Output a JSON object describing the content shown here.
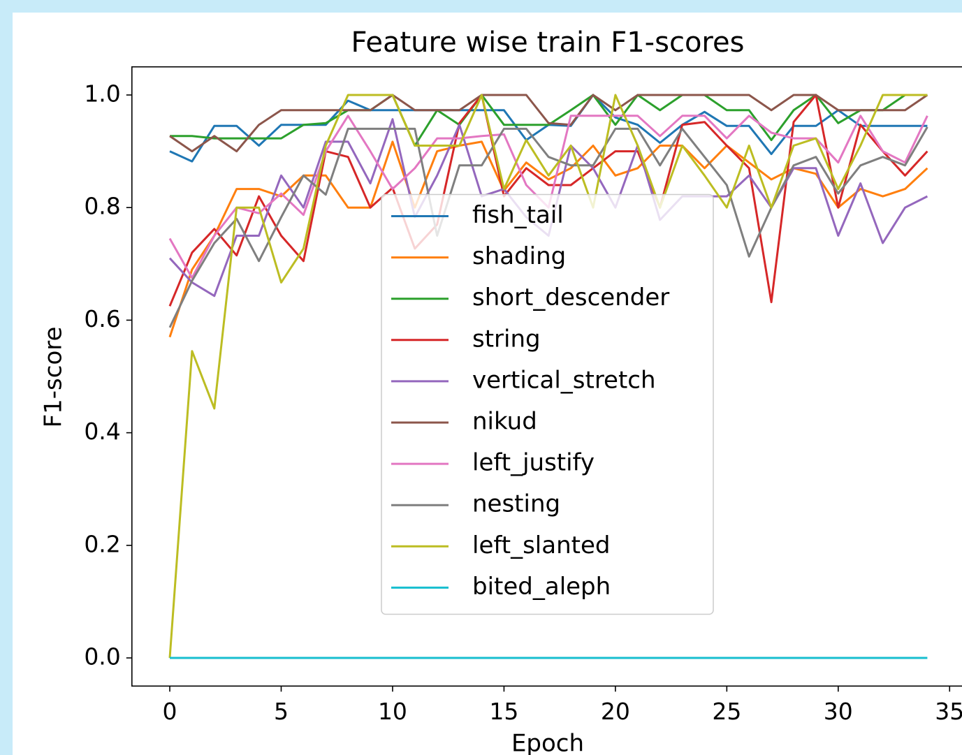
{
  "chart_data": {
    "type": "line",
    "title": "Feature wise train F1-scores",
    "x_label": "Epoch",
    "y_label": "F1-score",
    "x": [
      0,
      1,
      2,
      3,
      4,
      5,
      6,
      7,
      8,
      9,
      10,
      11,
      12,
      13,
      14,
      15,
      16,
      17,
      18,
      19,
      20,
      21,
      22,
      23,
      24,
      25,
      26,
      27,
      28,
      29,
      30,
      31,
      32,
      33,
      34
    ],
    "xlim": [
      -1.7,
      35.7
    ],
    "ylim": [
      -0.05,
      1.05
    ],
    "xticks": [
      0,
      5,
      10,
      15,
      20,
      25,
      30,
      35
    ],
    "yticks": [
      {
        "value": 0,
        "label": "0.0"
      },
      0.2,
      0.4,
      0.6,
      0.8,
      {
        "value": 1,
        "label": "1.0"
      }
    ],
    "legend": "center",
    "series": [
      {
        "name": "fish_tail",
        "color": "#1f77b4",
        "values": [
          0.9,
          0.882,
          0.945,
          0.945,
          0.91,
          0.947,
          0.947,
          0.947,
          0.99,
          0.973,
          0.973,
          0.973,
          0.973,
          0.973,
          0.973,
          0.973,
          0.92,
          0.947,
          0.945,
          1.0,
          0.96,
          0.947,
          0.915,
          0.947,
          0.97,
          0.945,
          0.945,
          0.895,
          0.945,
          0.945,
          0.973,
          0.945,
          0.945,
          0.945,
          0.945
        ]
      },
      {
        "name": "shading",
        "color": "#ff7f0e",
        "values": [
          0.57,
          0.69,
          0.75,
          0.833,
          0.833,
          0.82,
          0.857,
          0.857,
          0.8,
          0.8,
          0.917,
          0.8,
          0.9,
          0.91,
          0.917,
          0.83,
          0.88,
          0.85,
          0.87,
          0.91,
          0.857,
          0.87,
          0.91,
          0.91,
          0.87,
          0.91,
          0.88,
          0.85,
          0.87,
          0.86,
          0.8,
          0.833,
          0.82,
          0.833,
          0.87
        ]
      },
      {
        "name": "short_descender",
        "color": "#2ca02c",
        "values": [
          0.927,
          0.927,
          0.923,
          0.923,
          0.923,
          0.923,
          0.947,
          0.95,
          0.973,
          0.973,
          1.0,
          0.91,
          0.973,
          0.947,
          1.0,
          0.947,
          0.947,
          0.947,
          0.973,
          1.0,
          0.947,
          1.0,
          0.973,
          1.0,
          1.0,
          0.973,
          0.973,
          0.92,
          0.973,
          1.0,
          0.95,
          0.973,
          0.973,
          1.0,
          1.0
        ]
      },
      {
        "name": "string",
        "color": "#d62728",
        "values": [
          0.625,
          0.72,
          0.762,
          0.715,
          0.82,
          0.75,
          0.705,
          0.9,
          0.89,
          0.8,
          0.835,
          0.727,
          0.77,
          0.95,
          1.0,
          0.82,
          0.87,
          0.84,
          0.84,
          0.87,
          0.9,
          0.9,
          0.8,
          0.947,
          0.952,
          0.91,
          0.87,
          0.632,
          0.952,
          1.0,
          0.8,
          0.947,
          0.9,
          0.857,
          0.9
        ]
      },
      {
        "name": "vertical_stretch",
        "color": "#9467bd",
        "values": [
          0.71,
          0.667,
          0.643,
          0.75,
          0.75,
          0.857,
          0.8,
          0.917,
          0.917,
          0.843,
          0.957,
          0.783,
          0.857,
          0.947,
          0.82,
          0.833,
          0.783,
          0.75,
          0.91,
          0.87,
          0.8,
          0.91,
          0.778,
          0.82,
          0.82,
          0.82,
          0.857,
          0.8,
          0.87,
          0.87,
          0.75,
          0.843,
          0.737,
          0.8,
          0.82
        ]
      },
      {
        "name": "nikud",
        "color": "#8c564b",
        "values": [
          0.927,
          0.9,
          0.927,
          0.9,
          0.947,
          0.973,
          0.973,
          0.973,
          0.973,
          0.973,
          1.0,
          0.973,
          0.973,
          0.973,
          1.0,
          1.0,
          1.0,
          0.95,
          0.947,
          1.0,
          0.973,
          1.0,
          1.0,
          1.0,
          1.0,
          1.0,
          1.0,
          0.973,
          1.0,
          1.0,
          0.973,
          0.973,
          0.973,
          0.973,
          1.0
        ]
      },
      {
        "name": "left_justify",
        "color": "#e377c2",
        "values": [
          0.745,
          0.675,
          0.75,
          0.8,
          0.79,
          0.825,
          0.787,
          0.9,
          0.963,
          0.9,
          0.833,
          0.87,
          0.923,
          0.923,
          0.927,
          0.93,
          0.84,
          0.8,
          0.963,
          0.963,
          0.963,
          0.963,
          0.927,
          0.963,
          0.963,
          0.923,
          0.963,
          0.933,
          0.923,
          0.923,
          0.88,
          0.963,
          0.9,
          0.88,
          0.963
        ]
      },
      {
        "name": "nesting",
        "color": "#7f7f7f",
        "values": [
          0.587,
          0.67,
          0.737,
          0.78,
          0.705,
          0.783,
          0.857,
          0.823,
          0.94,
          0.94,
          0.94,
          0.94,
          0.75,
          0.875,
          0.875,
          0.94,
          0.94,
          0.89,
          0.875,
          0.875,
          0.94,
          0.94,
          0.875,
          0.94,
          0.89,
          0.84,
          0.713,
          0.8,
          0.875,
          0.89,
          0.825,
          0.875,
          0.89,
          0.875,
          0.943
        ]
      },
      {
        "name": "left_slanted",
        "color": "#bcbd22",
        "values": [
          0,
          0.545,
          0.443,
          0.8,
          0.8,
          0.667,
          0.727,
          0.91,
          1.0,
          1.0,
          1.0,
          0.91,
          0.91,
          0.91,
          1.0,
          0.833,
          0.92,
          0.857,
          0.91,
          0.8,
          1.0,
          0.91,
          0.8,
          0.91,
          0.857,
          0.8,
          0.91,
          0.8,
          0.91,
          0.923,
          0.833,
          0.91,
          1.0,
          1.0,
          1.0
        ]
      },
      {
        "name": "bited_aleph",
        "color": "#17becf",
        "values": [
          0,
          0,
          0,
          0,
          0,
          0,
          0,
          0,
          0,
          0,
          0,
          0,
          0,
          0,
          0,
          0,
          0,
          0,
          0,
          0,
          0,
          0,
          0,
          0,
          0,
          0,
          0,
          0,
          0,
          0,
          0,
          0,
          0,
          0,
          0
        ]
      }
    ]
  }
}
